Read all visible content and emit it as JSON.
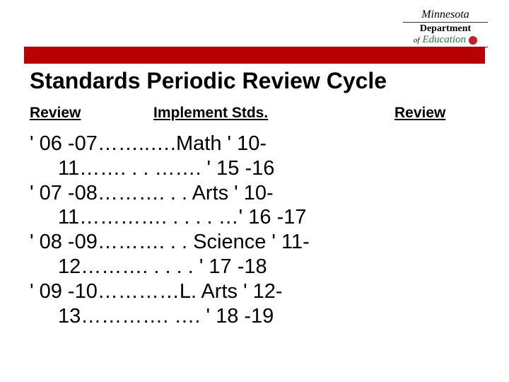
{
  "logo": {
    "script": "Minnesota",
    "line1": "Department",
    "of": "of",
    "edu": "Education"
  },
  "title": "Standards Periodic Review Cycle",
  "headers": {
    "review1": "Review",
    "implement": "Implement Stds.",
    "review2": "Review"
  },
  "rows": [
    {
      "a": "' 06 -07……..….Math ' 10-",
      "b": "11……. . . ……. ' 15 -16"
    },
    {
      "a": "' 07 -08………. . . Arts ' 10-",
      "b": "11…………. . . . . …' 16 -17"
    },
    {
      "a": "' 08 -09………. . . Science ' 11-",
      "b": "12………. . . . . ' 17 -18"
    },
    {
      "a": "' 09 -10…………L. Arts ' 12-",
      "b": "13…………. …. ' 18 -19"
    }
  ],
  "colors": {
    "red_bar": "#b90000",
    "apple": "#c82020",
    "edu_green": "#2a7a3a",
    "background": "#ffffff"
  }
}
